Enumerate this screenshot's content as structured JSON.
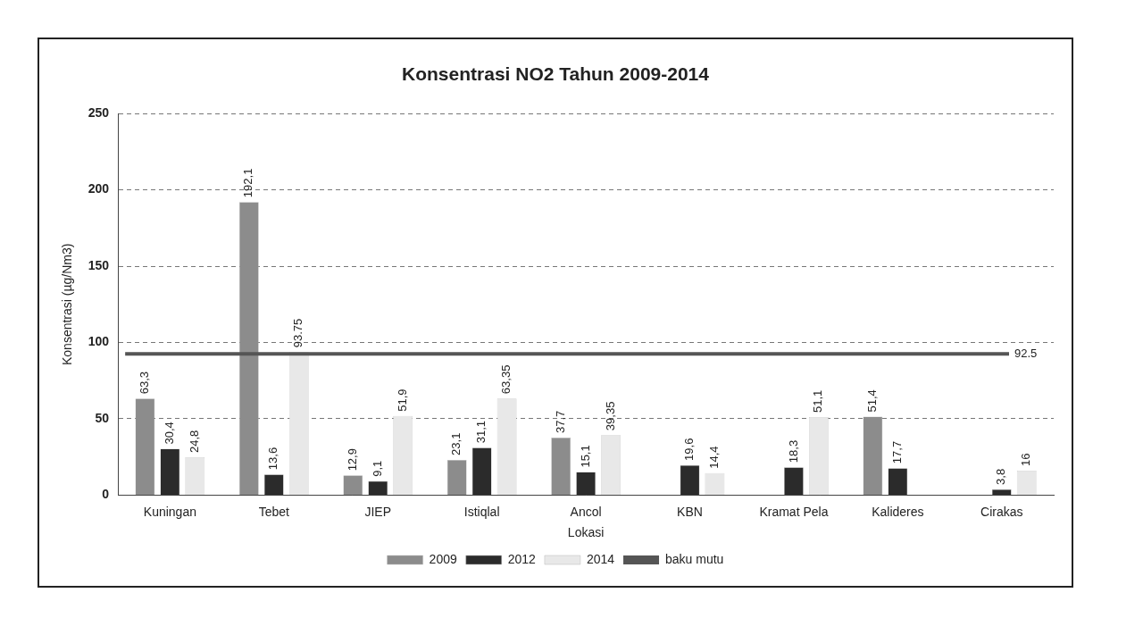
{
  "chart_data": {
    "type": "bar",
    "title": "Konsentrasi NO2 Tahun 2009-2014",
    "x_label": "Lokasi",
    "y_label": "Konsentrasi (µg/Nm3)",
    "categories": [
      "Kuningan",
      "Tebet",
      "JIEP",
      "Istiqlal",
      "Ancol",
      "KBN",
      "Kramat Pela",
      "Kalideres",
      "Cirakas"
    ],
    "series": [
      {
        "name": "2009",
        "color": "#8c8c8c",
        "values": [
          63.3,
          192.1,
          12.9,
          23.1,
          37.7,
          null,
          null,
          51.4,
          null
        ],
        "value_labels": [
          "63,3",
          "192,1",
          "12,9",
          "23,1",
          "37,7",
          null,
          null,
          "51,4",
          null
        ]
      },
      {
        "name": "2012",
        "color": "#2b2b2b",
        "values": [
          30.4,
          13.6,
          9.1,
          31.1,
          15.1,
          19.6,
          18.3,
          17.7,
          3.8
        ],
        "value_labels": [
          "30,4",
          "13,6",
          "9,1",
          "31,1",
          "15,1",
          "19,6",
          "18,3",
          "17,7",
          "3,8"
        ]
      },
      {
        "name": "2014",
        "color": "#e8e8e8",
        "values": [
          24.8,
          93.75,
          51.9,
          63.35,
          39.35,
          14.4,
          51.1,
          null,
          16
        ],
        "value_labels": [
          "24,8",
          "93.75",
          "51,9",
          "63,35",
          "39,35",
          "14,4",
          "51,1",
          null,
          "16"
        ]
      }
    ],
    "reference_line": {
      "name": "baku mutu",
      "value": 92.5,
      "color": "#555555"
    },
    "ylim": [
      0,
      250
    ],
    "yticks": [
      0,
      50,
      100,
      150,
      200,
      250
    ],
    "grid": true,
    "legend": "bottom",
    "data_labels": true
  }
}
